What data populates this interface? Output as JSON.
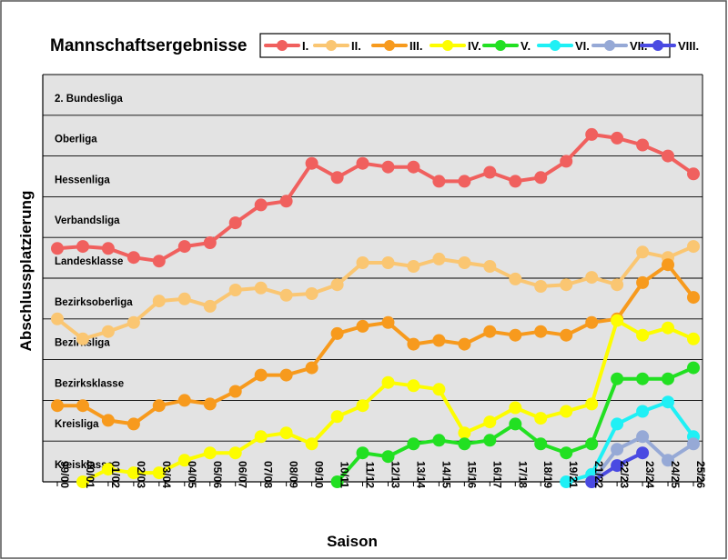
{
  "chart_data": {
    "type": "line",
    "title": "Mannschaftsergebnisse",
    "xlabel": "Saison",
    "ylabel": "Abschlussplatzierung",
    "ylim": [
      0,
      100
    ],
    "y_bands": [
      {
        "label": "Kreisklasse",
        "from": 0,
        "to": 10
      },
      {
        "label": "Kreisliga",
        "from": 10,
        "to": 20
      },
      {
        "label": "Bezirksklasse",
        "from": 20,
        "to": 30
      },
      {
        "label": "Bezirksliga",
        "from": 30,
        "to": 40
      },
      {
        "label": "Bezirksoberliga",
        "from": 40,
        "to": 50
      },
      {
        "label": "Landesklasse",
        "from": 50,
        "to": 60
      },
      {
        "label": "Verbandsliga",
        "from": 60,
        "to": 70
      },
      {
        "label": "Hessenliga",
        "from": 70,
        "to": 80
      },
      {
        "label": "Oberliga",
        "from": 80,
        "to": 90
      },
      {
        "label": "2. Bundesliga",
        "from": 90,
        "to": 100
      }
    ],
    "categories": [
      "99/00",
      "00/01",
      "01/02",
      "02/03",
      "03/04",
      "04/05",
      "05/06",
      "06/07",
      "07/08",
      "08/09",
      "09/10",
      "10/11",
      "11/12",
      "12/13",
      "13/14",
      "14/15",
      "15/16",
      "16/17",
      "17/18",
      "18/19",
      "19/21",
      "21/22",
      "22/23",
      "23/24",
      "24/25",
      "25/26"
    ],
    "series": [
      {
        "name": "I.",
        "color": "#f0605e",
        "values": [
          57.3,
          57.8,
          57.3,
          55.1,
          54.2,
          57.8,
          58.7,
          63.6,
          68.0,
          68.9,
          78.2,
          74.7,
          78.2,
          77.3,
          77.3,
          73.8,
          73.8,
          76.0,
          73.8,
          74.7,
          78.7,
          85.3,
          84.4,
          82.7,
          80.0,
          75.6
        ]
      },
      {
        "name": "II.",
        "color": "#fac672",
        "values": [
          40.0,
          35.1,
          36.9,
          39.1,
          44.4,
          44.9,
          43.1,
          47.1,
          47.6,
          45.8,
          46.2,
          48.4,
          53.8,
          53.8,
          52.9,
          54.7,
          53.8,
          52.9,
          49.8,
          48.0,
          48.4,
          50.2,
          48.4,
          56.4,
          55.1,
          57.8
        ]
      },
      {
        "name": "III.",
        "color": "#f79a1d",
        "values": [
          18.7,
          18.7,
          15.1,
          14.2,
          18.7,
          20.0,
          19.1,
          22.2,
          26.2,
          26.2,
          28.0,
          36.4,
          38.2,
          39.1,
          33.8,
          34.7,
          33.8,
          36.9,
          36.0,
          36.9,
          36.0,
          39.1,
          40.0,
          48.9,
          53.3,
          45.3
        ]
      },
      {
        "name": "IV.",
        "color": "#fdfd00",
        "values": [
          null,
          0.0,
          3.1,
          2.2,
          2.2,
          5.3,
          7.1,
          7.1,
          11.1,
          12.0,
          9.3,
          16.0,
          18.7,
          24.4,
          23.6,
          22.7,
          12.0,
          14.7,
          18.2,
          15.6,
          17.3,
          19.1,
          39.6,
          36.0,
          37.8,
          35.1
        ]
      },
      {
        "name": "V.",
        "color": "#22e022",
        "values": [
          null,
          null,
          null,
          null,
          null,
          null,
          null,
          null,
          null,
          null,
          null,
          0.0,
          7.1,
          6.2,
          9.3,
          10.2,
          9.3,
          10.2,
          14.2,
          9.3,
          7.1,
          9.3,
          25.3,
          25.3,
          25.3,
          28.0
        ]
      },
      {
        "name": "VI.",
        "color": "#1ff0f5",
        "values": [
          null,
          null,
          null,
          null,
          null,
          null,
          null,
          null,
          null,
          null,
          null,
          null,
          null,
          null,
          null,
          null,
          null,
          null,
          null,
          null,
          0.0,
          1.8,
          14.2,
          17.3,
          19.6,
          11.1
        ]
      },
      {
        "name": "VII.",
        "color": "#96a9d6",
        "values": [
          null,
          null,
          null,
          null,
          null,
          null,
          null,
          null,
          null,
          null,
          null,
          null,
          null,
          null,
          null,
          null,
          null,
          null,
          null,
          null,
          null,
          0.0,
          8.0,
          11.1,
          5.3,
          9.3
        ]
      },
      {
        "name": "VIII.",
        "color": "#4a4ae2",
        "values": [
          null,
          null,
          null,
          null,
          null,
          null,
          null,
          null,
          null,
          null,
          null,
          null,
          null,
          null,
          null,
          null,
          null,
          null,
          null,
          null,
          null,
          0.0,
          4.0,
          7.1,
          null,
          null
        ]
      }
    ]
  }
}
